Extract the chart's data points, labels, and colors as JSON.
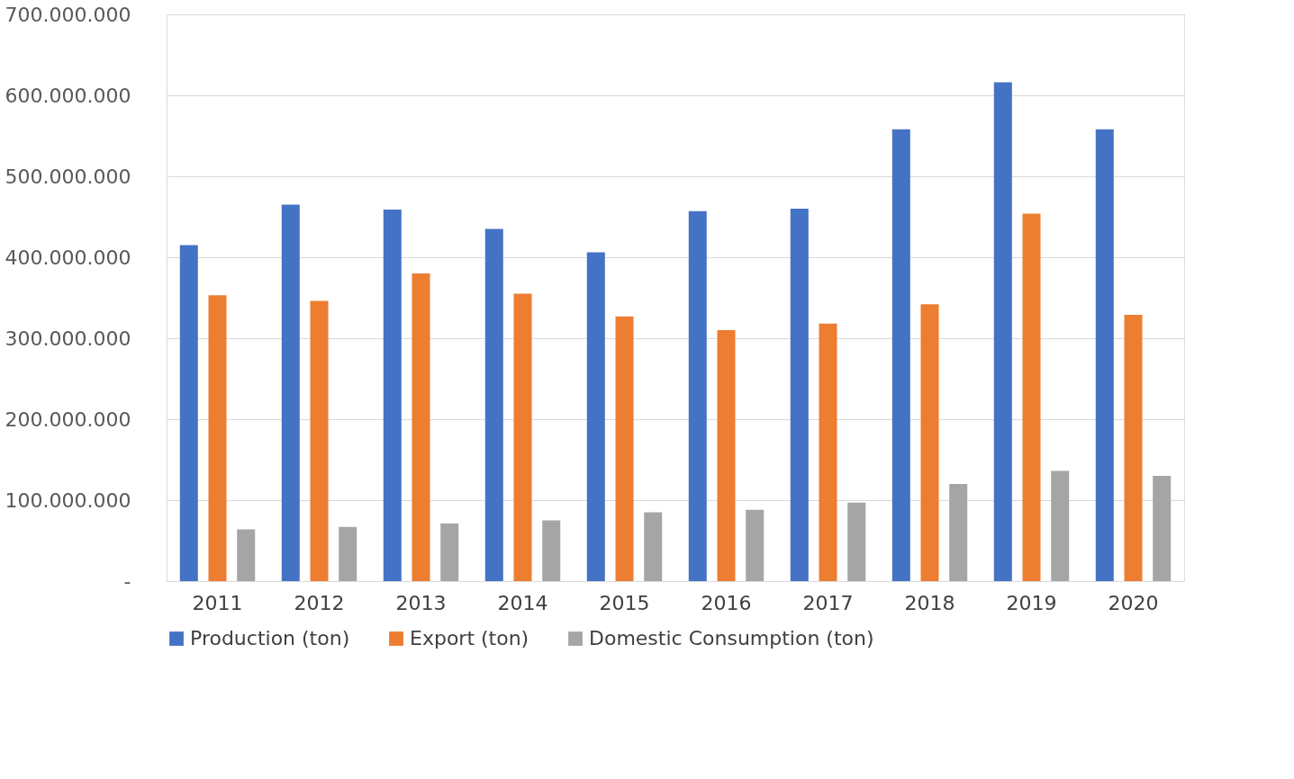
{
  "chart_data": {
    "type": "bar",
    "categories": [
      "2011",
      "2012",
      "2013",
      "2014",
      "2015",
      "2016",
      "2017",
      "2018",
      "2019",
      "2020"
    ],
    "series": [
      {
        "name": "Production (ton)",
        "color": "#4472c4",
        "values": [
          415000000,
          465000000,
          459000000,
          435000000,
          406000000,
          457000000,
          460000000,
          558000000,
          616000000,
          558000000
        ]
      },
      {
        "name": "Export (ton)",
        "color": "#ed7d31",
        "values": [
          353000000,
          346000000,
          380000000,
          355000000,
          327000000,
          310000000,
          318000000,
          342000000,
          454000000,
          329000000
        ]
      },
      {
        "name": "Domestic Consumption (ton)",
        "color": "#a5a5a5",
        "values": [
          64000000,
          67000000,
          71000000,
          75000000,
          85000000,
          88000000,
          97000000,
          120000000,
          136000000,
          130000000
        ]
      }
    ],
    "ylim": [
      0,
      700000000
    ],
    "yticks": [
      {
        "value": 0,
        "label": "-"
      },
      {
        "value": 100000000,
        "label": "100.000.000"
      },
      {
        "value": 200000000,
        "label": "200.000.000"
      },
      {
        "value": 300000000,
        "label": "300.000.000"
      },
      {
        "value": 400000000,
        "label": "400.000.000"
      },
      {
        "value": 500000000,
        "label": "500.000.000"
      },
      {
        "value": 600000000,
        "label": "600.000.000"
      },
      {
        "value": 700000000,
        "label": "700.000.000"
      }
    ],
    "grid": "y",
    "legend": "bottom"
  }
}
